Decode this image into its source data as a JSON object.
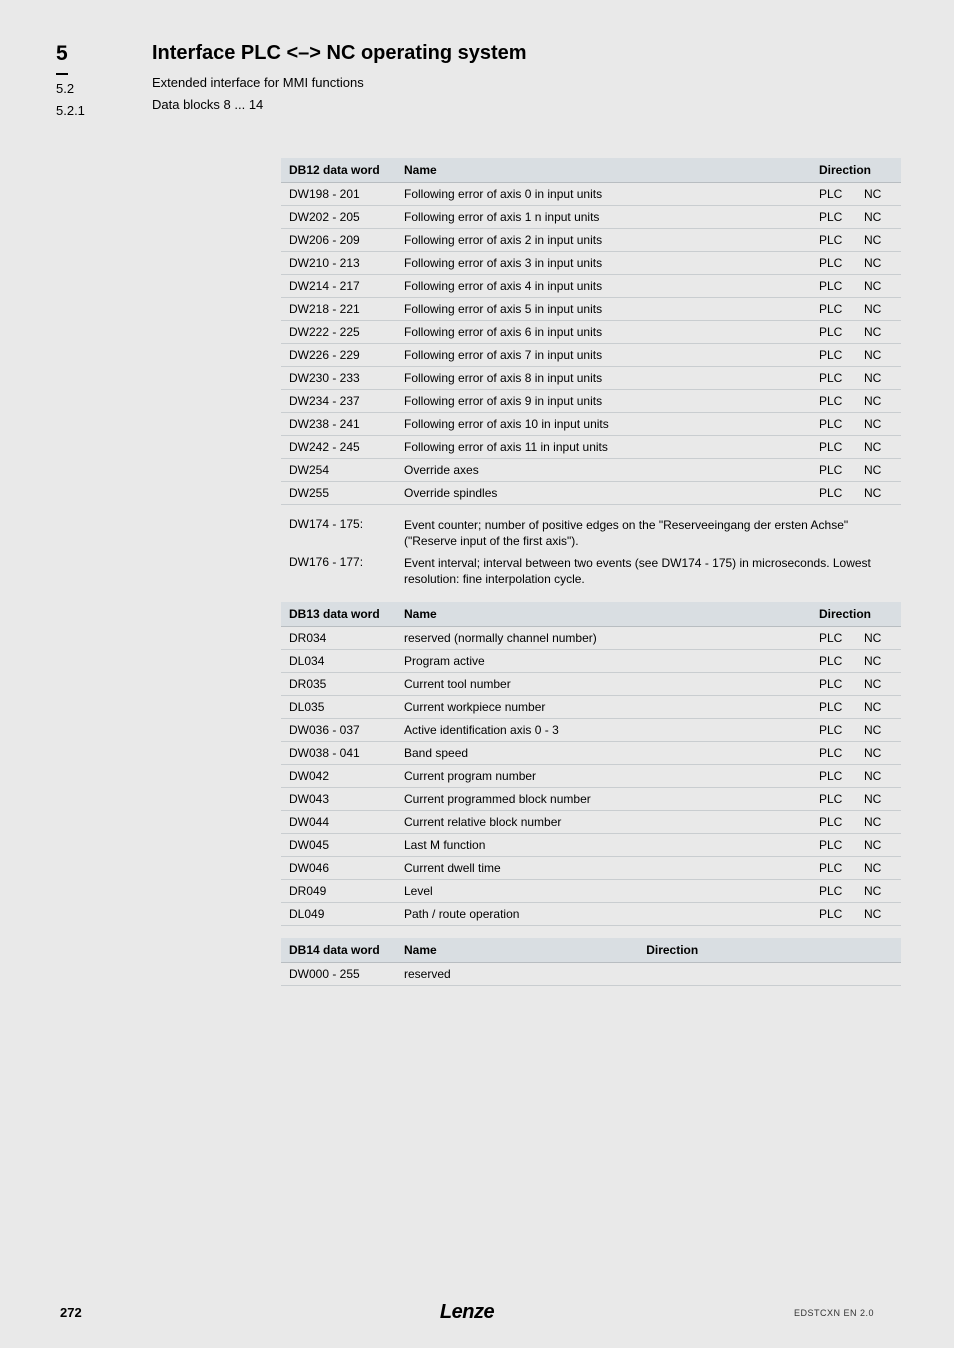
{
  "header": {
    "section_main": "5",
    "section_sub1": "5.2",
    "section_sub2": "5.2.1",
    "title_main": "Interface PLC <–> NC operating system",
    "title_sub1": "Extended interface for MMI functions",
    "title_sub2": "Data blocks 8 ... 14"
  },
  "table_db12": {
    "columns": {
      "word": "DB12 data word",
      "name": "Name",
      "direction": "Direction"
    },
    "dir_from": "PLC",
    "dir_to": "NC",
    "rows": [
      {
        "word": "DW198 - 201",
        "name": "Following error of axis 0 in input units"
      },
      {
        "word": "DW202 - 205",
        "name": "Following error of axis 1 n input units"
      },
      {
        "word": "DW206 - 209",
        "name": "Following error of axis 2 in input units"
      },
      {
        "word": "DW210 - 213",
        "name": "Following error of axis 3 in input units"
      },
      {
        "word": "DW214 - 217",
        "name": "Following error of axis 4 in input units"
      },
      {
        "word": "DW218 - 221",
        "name": "Following error of axis 5 in input units"
      },
      {
        "word": "DW222 - 225",
        "name": "Following error of axis 6 in input units"
      },
      {
        "word": "DW226 - 229",
        "name": "Following error of axis 7 in input units"
      },
      {
        "word": "DW230 - 233",
        "name": "Following error of axis 8 in input units"
      },
      {
        "word": "DW234 - 237",
        "name": "Following error of axis 9 in input units"
      },
      {
        "word": "DW238 - 241",
        "name": "Following error of axis 10 in input units"
      },
      {
        "word": "DW242 - 245",
        "name": "Following error of axis 11 in input units"
      },
      {
        "word": "DW254",
        "name": "Override axes"
      },
      {
        "word": "DW255",
        "name": "Override spindles"
      }
    ]
  },
  "notes": [
    {
      "word": "DW174 - 175:",
      "text": "Event counter; number of positive edges on the \"Reserveeingang der ersten Achse\" (\"Reserve input of the first axis\")."
    },
    {
      "word": "DW176 - 177:",
      "text": "Event interval; interval between two events (see DW174 - 175) in microseconds. Lowest resolution: fine interpolation cycle."
    }
  ],
  "table_db13": {
    "columns": {
      "word": "DB13 data word",
      "name": "Name",
      "direction": "Direction"
    },
    "dir_from": "PLC",
    "dir_to": "NC",
    "rows": [
      {
        "word": "DR034",
        "name": "reserved (normally channel number)"
      },
      {
        "word": "DL034",
        "name": "Program active"
      },
      {
        "word": "DR035",
        "name": "Current tool number"
      },
      {
        "word": "DL035",
        "name": "Current workpiece number"
      },
      {
        "word": "DW036 - 037",
        "name": "Active identification axis 0 - 3"
      },
      {
        "word": "DW038 - 041",
        "name": "Band speed"
      },
      {
        "word": "DW042",
        "name": "Current program number"
      },
      {
        "word": "DW043",
        "name": "Current programmed block number"
      },
      {
        "word": "DW044",
        "name": "Current relative block number"
      },
      {
        "word": "DW045",
        "name": "Last M function"
      },
      {
        "word": "DW046",
        "name": "Current dwell time"
      },
      {
        "word": "DR049",
        "name": "Level"
      },
      {
        "word": "DL049",
        "name": "Path / route operation"
      }
    ]
  },
  "table_db14": {
    "columns": {
      "word": "DB14 data word",
      "name": "Name",
      "direction": "Direction"
    },
    "rows": [
      {
        "word": "DW000 - 255",
        "name": "reserved"
      }
    ]
  },
  "footer": {
    "page": "272",
    "brand": "Lenze",
    "doc_id": "EDSTCXN EN 2.0"
  }
}
